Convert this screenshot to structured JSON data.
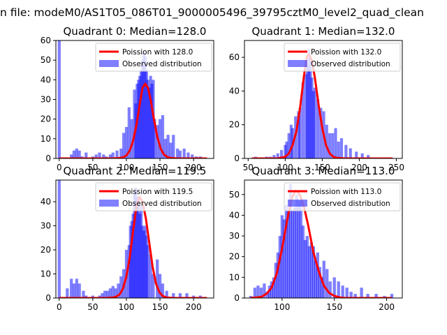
{
  "figure": {
    "suptitle": "n file: modeM0/AS1T05_086T01_9000005496_39795cztM0_level2_quad_clean"
  },
  "chart_data": [
    {
      "type": "bar",
      "title": "Quadrant 0: Median=128.0",
      "xlim": [
        -5,
        230
      ],
      "ylim": [
        0,
        60
      ],
      "xticks": [
        0,
        50,
        100,
        150,
        200
      ],
      "yticks": [
        0,
        10,
        20,
        30,
        40,
        50,
        60
      ],
      "bin_width": 4.4,
      "hist_x": [
        0,
        18,
        22,
        26,
        30,
        34,
        40,
        50,
        55,
        60,
        66,
        70,
        76,
        80,
        86,
        92,
        96,
        100,
        104,
        108,
        112,
        114,
        116,
        118,
        120,
        122,
        124,
        126,
        128,
        130,
        132,
        134,
        136,
        138,
        140,
        142,
        146,
        150,
        154,
        158,
        162,
        166,
        170,
        176,
        180,
        186,
        192,
        198,
        204,
        210
      ],
      "hist_y": [
        60,
        2,
        4,
        5,
        4,
        1,
        3,
        1,
        2,
        3,
        2,
        1,
        2,
        3,
        4,
        5,
        13,
        16,
        26,
        20,
        35,
        28,
        38,
        40,
        42,
        45,
        50,
        54,
        52,
        45,
        40,
        36,
        42,
        38,
        40,
        20,
        17,
        20,
        22,
        10,
        12,
        8,
        12,
        5,
        4,
        5,
        3,
        2,
        1,
        1
      ],
      "model_x": [
        0,
        80,
        90,
        95,
        100,
        105,
        110,
        115,
        120,
        124,
        128,
        132,
        136,
        141,
        146,
        151,
        156,
        161,
        166,
        176,
        220
      ],
      "model_y": [
        0,
        0,
        0.2,
        0.6,
        1.5,
        4,
        9,
        17,
        28,
        36,
        38,
        36,
        30,
        20,
        11,
        5,
        2,
        0.7,
        0.2,
        0,
        0
      ],
      "legend": {
        "position": "top-right",
        "model_label": "Poission with 128.0",
        "hist_label": "Observed distribution"
      }
    },
    {
      "type": "bar",
      "title": "Quadrant 1: Median=132.0",
      "xlim": [
        45,
        258
      ],
      "ylim": [
        0,
        70
      ],
      "xticks": [
        50,
        100,
        150,
        200,
        250
      ],
      "yticks": [
        0,
        20,
        40,
        60
      ],
      "bin_width": 3.9,
      "hist_x": [
        60,
        75,
        80,
        85,
        90,
        95,
        100,
        102,
        105,
        108,
        110,
        114,
        118,
        120,
        124,
        128,
        130,
        132,
        134,
        136,
        138,
        140,
        144,
        148,
        152,
        156,
        160,
        164,
        168,
        172,
        176,
        182,
        188,
        196,
        204,
        212
      ],
      "hist_y": [
        1,
        1,
        1,
        2,
        3,
        5,
        8,
        10,
        15,
        20,
        18,
        25,
        28,
        30,
        45,
        50,
        55,
        65,
        60,
        48,
        40,
        42,
        35,
        30,
        28,
        20,
        15,
        15,
        18,
        10,
        12,
        8,
        6,
        4,
        3,
        2
      ],
      "model_x": [
        55,
        90,
        100,
        105,
        110,
        115,
        120,
        125,
        129,
        132,
        136,
        140,
        145,
        150,
        155,
        160,
        165,
        170,
        180,
        245
      ],
      "model_y": [
        0,
        0,
        1,
        3,
        8,
        16,
        30,
        48,
        60,
        62,
        58,
        48,
        32,
        18,
        8,
        3,
        1,
        0.3,
        0,
        0
      ],
      "legend": {
        "position": "top-right",
        "model_label": "Poission with 132.0",
        "hist_label": "Observed distribution"
      }
    },
    {
      "type": "bar",
      "title": "Quadrant 2: Median=119.5",
      "xlim": [
        -5,
        230
      ],
      "ylim": [
        0,
        49
      ],
      "xticks": [
        0,
        50,
        100,
        150,
        200
      ],
      "yticks": [
        0,
        10,
        20,
        30,
        40
      ],
      "bin_width": 4.4,
      "hist_x": [
        0,
        12,
        18,
        22,
        26,
        30,
        36,
        40,
        50,
        60,
        64,
        68,
        72,
        76,
        80,
        84,
        88,
        92,
        96,
        100,
        104,
        106,
        108,
        110,
        112,
        114,
        116,
        118,
        120,
        122,
        124,
        126,
        128,
        130,
        132,
        136,
        140,
        146,
        150,
        154,
        160,
        170,
        180,
        190,
        200,
        210
      ],
      "hist_y": [
        49,
        4,
        8,
        6,
        8,
        6,
        3,
        1,
        1,
        1,
        2,
        3,
        3,
        4,
        5,
        4,
        6,
        9,
        12,
        20,
        22,
        30,
        32,
        35,
        44,
        46,
        42,
        40,
        35,
        38,
        30,
        28,
        30,
        26,
        22,
        18,
        10,
        16,
        10,
        6,
        3,
        2,
        2,
        2,
        1,
        1
      ],
      "model_x": [
        0,
        70,
        80,
        85,
        90,
        95,
        100,
        105,
        110,
        115,
        119.5,
        124,
        129,
        134,
        139,
        144,
        149,
        154,
        160,
        170,
        220
      ],
      "model_y": [
        0,
        0,
        0.2,
        0.6,
        1.5,
        4,
        9,
        17,
        28,
        38,
        42,
        40,
        33,
        23,
        13,
        6,
        2.5,
        0.8,
        0.2,
        0,
        0
      ],
      "legend": {
        "position": "top-right",
        "model_label": "Poission with 119.5",
        "hist_label": "Observed distribution"
      }
    },
    {
      "type": "bar",
      "title": "Quadrant 3: Median=113.0",
      "xlim": [
        64,
        215
      ],
      "ylim": [
        0,
        57
      ],
      "xticks": [
        100,
        150,
        200
      ],
      "yticks": [
        0,
        10,
        20,
        30,
        40,
        50
      ],
      "bin_width": 2.9,
      "hist_x": [
        70,
        74,
        77,
        80,
        83,
        86,
        88,
        90,
        92,
        94,
        96,
        98,
        100,
        102,
        104,
        106,
        108,
        110,
        112,
        114,
        116,
        118,
        120,
        122,
        124,
        126,
        128,
        130,
        132,
        134,
        136,
        138,
        140,
        143,
        146,
        150,
        154,
        158,
        162,
        166,
        170,
        176,
        182,
        190,
        198,
        205
      ],
      "hist_y": [
        1,
        5,
        6,
        5,
        7,
        3,
        6,
        8,
        10,
        17,
        22,
        30,
        40,
        38,
        45,
        42,
        55,
        42,
        44,
        50,
        47,
        47,
        35,
        28,
        30,
        25,
        27,
        25,
        18,
        22,
        15,
        10,
        18,
        14,
        8,
        10,
        8,
        6,
        5,
        3,
        2,
        5,
        2,
        2,
        1,
        2
      ],
      "model_x": [
        70,
        80,
        85,
        90,
        95,
        100,
        105,
        109,
        113,
        117,
        121,
        125,
        130,
        135,
        140,
        145,
        150,
        155,
        160,
        170,
        205
      ],
      "model_y": [
        0,
        0.5,
        2,
        5,
        12,
        24,
        38,
        48,
        52,
        50,
        44,
        35,
        22,
        13,
        6,
        2.5,
        1,
        0.3,
        0,
        0,
        0
      ],
      "legend": {
        "position": "top-right",
        "model_label": "Poission with 113.0",
        "hist_label": "Observed distribution"
      }
    }
  ]
}
